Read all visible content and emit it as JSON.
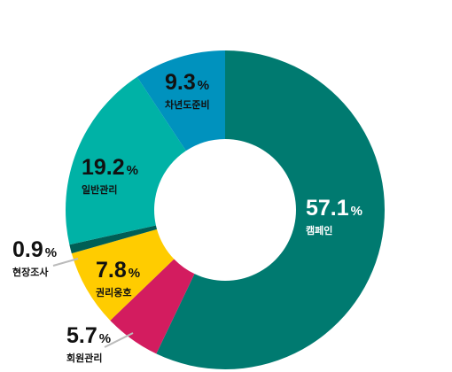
{
  "chart_data": {
    "type": "donut",
    "unit": "%",
    "categories": [
      "캠페인",
      "회원관리",
      "권리옹호",
      "현장조사",
      "일반관리",
      "차년도준비"
    ],
    "values": [
      57.1,
      5.7,
      7.8,
      0.9,
      19.2,
      9.3
    ],
    "colors": [
      "#007a70",
      "#d31c5f",
      "#ffcc00",
      "#005e55",
      "#00b2a6",
      "#0092be"
    ]
  }
}
